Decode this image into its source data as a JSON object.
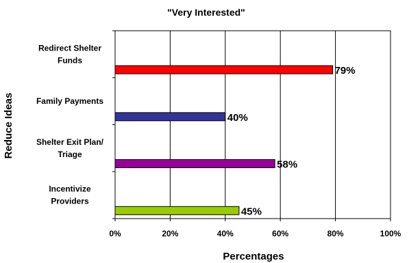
{
  "chart_data": {
    "type": "bar",
    "orientation": "horizontal",
    "title": "\"Very Interested\"",
    "xlabel": "Percentages",
    "ylabel": "Reduce Ideas",
    "categories": [
      [
        "Redirect Shelter",
        "Funds"
      ],
      [
        "Family Payments"
      ],
      [
        "Shelter Exit Plan/",
        "Triage"
      ],
      [
        "Incentivize",
        "Providers"
      ]
    ],
    "values": [
      79,
      40,
      58,
      45
    ],
    "value_labels": [
      "79%",
      "40%",
      "58%",
      "45%"
    ],
    "colors": [
      "#ff0000",
      "#333399",
      "#990099",
      "#99cc00"
    ],
    "xlim": [
      0,
      100
    ],
    "xticks": [
      "0%",
      "20%",
      "40%",
      "60%",
      "80%",
      "100%"
    ],
    "grid": "vertical"
  }
}
